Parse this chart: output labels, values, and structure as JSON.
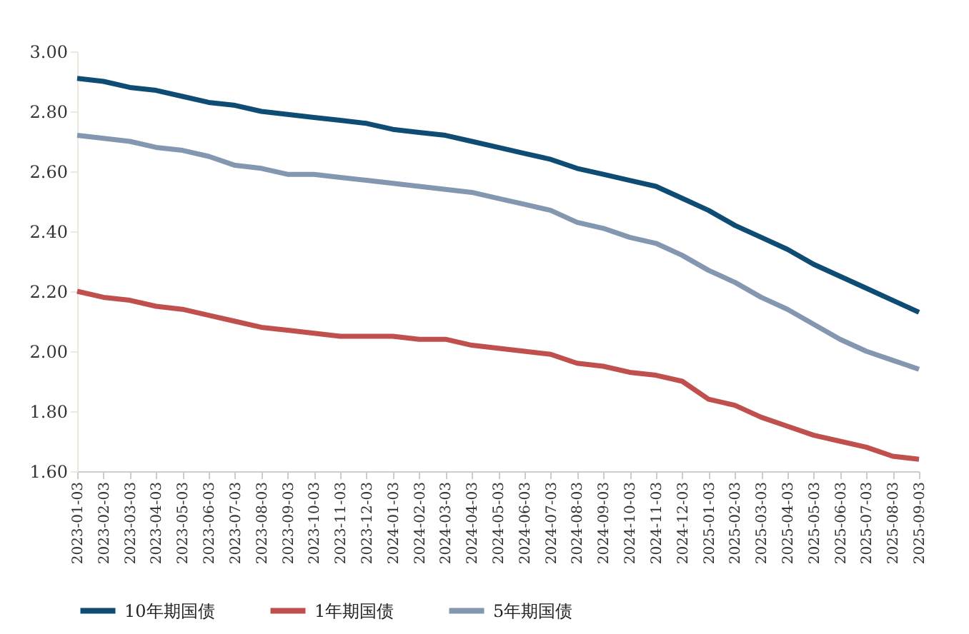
{
  "chart_data": {
    "type": "line",
    "categories": [
      "2023-01-03",
      "2023-02-03",
      "2023-03-03",
      "2023-04-03",
      "2023-05-03",
      "2023-06-03",
      "2023-07-03",
      "2023-08-03",
      "2023-09-03",
      "2023-10-03",
      "2023-11-03",
      "2023-12-03",
      "2024-01-03",
      "2024-02-03",
      "2024-03-03",
      "2024-04-03",
      "2024-05-03",
      "2024-06-03",
      "2024-07-03",
      "2024-08-03",
      "2024-09-03",
      "2024-10-03",
      "2024-11-03",
      "2024-12-03",
      "2025-01-03",
      "2025-02-03",
      "2025-03-03",
      "2025-04-03",
      "2025-05-03",
      "2025-06-03",
      "2025-07-03",
      "2025-08-03",
      "2025-09-03"
    ],
    "series": [
      {
        "name": "10年期国债",
        "color": "#0e4c74",
        "values": [
          2.91,
          2.9,
          2.88,
          2.87,
          2.85,
          2.83,
          2.82,
          2.8,
          2.79,
          2.78,
          2.77,
          2.76,
          2.74,
          2.73,
          2.72,
          2.7,
          2.68,
          2.66,
          2.64,
          2.61,
          2.59,
          2.57,
          2.55,
          2.51,
          2.47,
          2.42,
          2.38,
          2.34,
          2.29,
          2.25,
          2.21,
          2.17,
          2.13
        ]
      },
      {
        "name": "1年期国债",
        "color": "#c0504d",
        "values": [
          2.2,
          2.18,
          2.17,
          2.15,
          2.14,
          2.12,
          2.1,
          2.08,
          2.07,
          2.06,
          2.05,
          2.05,
          2.05,
          2.04,
          2.04,
          2.02,
          2.01,
          2.0,
          1.99,
          1.96,
          1.95,
          1.93,
          1.92,
          1.9,
          1.84,
          1.82,
          1.78,
          1.75,
          1.72,
          1.7,
          1.68,
          1.65,
          1.64
        ]
      },
      {
        "name": "5年期国债",
        "color": "#8497b0",
        "values": [
          2.72,
          2.71,
          2.7,
          2.68,
          2.67,
          2.65,
          2.62,
          2.61,
          2.59,
          2.59,
          2.58,
          2.57,
          2.56,
          2.55,
          2.54,
          2.53,
          2.51,
          2.49,
          2.47,
          2.43,
          2.41,
          2.38,
          2.36,
          2.32,
          2.27,
          2.23,
          2.18,
          2.14,
          2.09,
          2.04,
          2.0,
          1.97,
          1.94
        ]
      }
    ],
    "ylim": [
      1.6,
      3.0
    ],
    "yticks": [
      {
        "value": 1.6,
        "label": "1.60"
      },
      {
        "value": 1.8,
        "label": "1.80"
      },
      {
        "value": 2.0,
        "label": "2.00"
      },
      {
        "value": 2.2,
        "label": "2.20"
      },
      {
        "value": 2.4,
        "label": "2.40"
      },
      {
        "value": 2.6,
        "label": "2.60"
      },
      {
        "value": 2.8,
        "label": "2.80"
      },
      {
        "value": 3.0,
        "label": "3.00"
      }
    ],
    "grid": false,
    "legend": "bottom",
    "marker": "none",
    "line_style": "solid"
  }
}
